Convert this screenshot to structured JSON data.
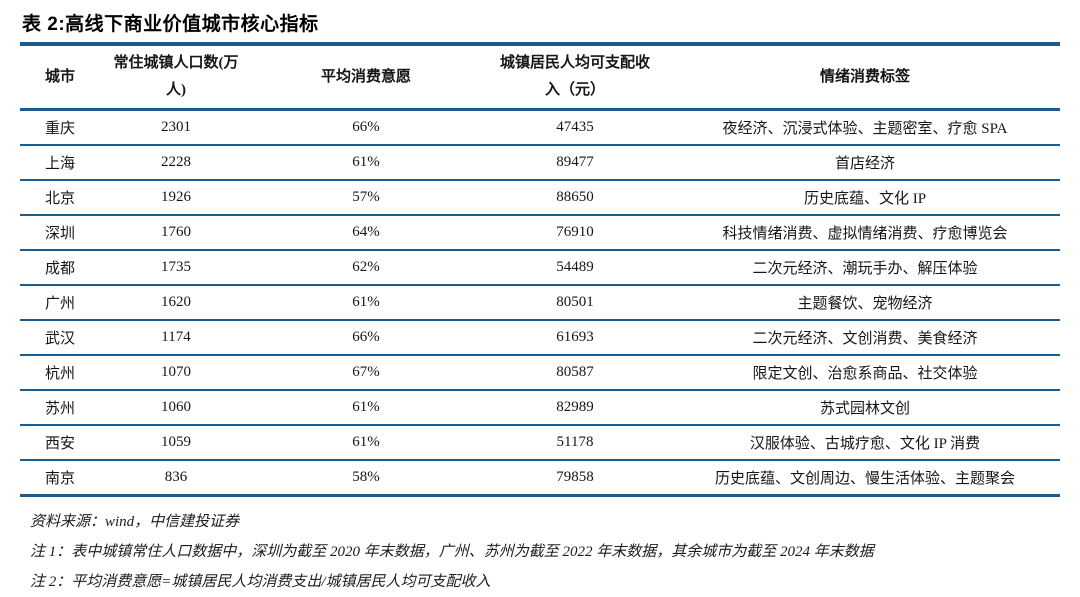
{
  "title": "表 2:高线下商业价值城市核心指标",
  "table": {
    "columns": [
      {
        "key": "city",
        "label": "城市"
      },
      {
        "key": "population",
        "label": "常住城镇人口数(万人)"
      },
      {
        "key": "willingness",
        "label": "平均消费意愿"
      },
      {
        "key": "income",
        "label": "城镇居民人均可支配收入（元）"
      },
      {
        "key": "tags",
        "label": "情绪消费标签"
      }
    ],
    "rows": [
      {
        "city": "重庆",
        "population": "2301",
        "willingness": "66%",
        "income": "47435",
        "tags": "夜经济、沉浸式体验、主题密室、疗愈 SPA"
      },
      {
        "city": "上海",
        "population": "2228",
        "willingness": "61%",
        "income": "89477",
        "tags": "首店经济"
      },
      {
        "city": "北京",
        "population": "1926",
        "willingness": "57%",
        "income": "88650",
        "tags": "历史底蕴、文化 IP"
      },
      {
        "city": "深圳",
        "population": "1760",
        "willingness": "64%",
        "income": "76910",
        "tags": "科技情绪消费、虚拟情绪消费、疗愈博览会"
      },
      {
        "city": "成都",
        "population": "1735",
        "willingness": "62%",
        "income": "54489",
        "tags": "二次元经济、潮玩手办、解压体验"
      },
      {
        "city": "广州",
        "population": "1620",
        "willingness": "61%",
        "income": "80501",
        "tags": "主题餐饮、宠物经济"
      },
      {
        "city": "武汉",
        "population": "1174",
        "willingness": "66%",
        "income": "61693",
        "tags": "二次元经济、文创消费、美食经济"
      },
      {
        "city": "杭州",
        "population": "1070",
        "willingness": "67%",
        "income": "80587",
        "tags": "限定文创、治愈系商品、社交体验"
      },
      {
        "city": "苏州",
        "population": "1060",
        "willingness": "61%",
        "income": "82989",
        "tags": "苏式园林文创"
      },
      {
        "city": "西安",
        "population": "1059",
        "willingness": "61%",
        "income": "51178",
        "tags": "汉服体验、古城疗愈、文化 IP 消费"
      },
      {
        "city": "南京",
        "population": "836",
        "willingness": "58%",
        "income": "79858",
        "tags": "历史底蕴、文创周边、慢生活体验、主题聚会"
      }
    ]
  },
  "footer": {
    "source": "资料来源：wind，中信建投证券",
    "note1": "注 1：表中城镇常住人口数据中，深圳为截至 2020 年末数据，广州、苏州为截至 2022 年末数据，其余城市为截至 2024 年末数据",
    "note2": "注 2：平均消费意愿=城镇居民人均消费支出/城镇居民人均可支配收入"
  },
  "colors": {
    "rule_blue": "#1b5c8e",
    "text": "#161616"
  }
}
